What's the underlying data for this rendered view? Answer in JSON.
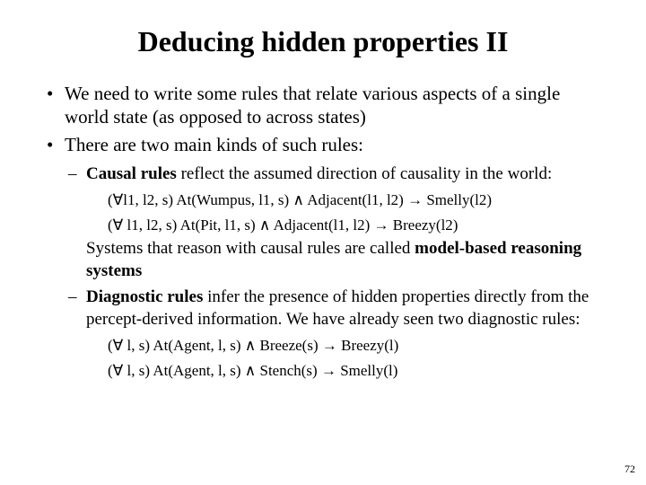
{
  "title": "Deducing hidden properties II",
  "bullets": {
    "b1": "We need to write some rules that relate various aspects of a single world state (as opposed to across states)",
    "b2": "There are two main kinds of such rules:"
  },
  "sub": {
    "causal_bold": "Causal rules",
    "causal_rest": " reflect the assumed direction of causality in the world:",
    "diag_bold": "Diagnostic rules",
    "diag_rest": " infer the presence of hidden properties directly from the percept-derived information. We have already seen two diagnostic rules:"
  },
  "formulas": {
    "f1": "(∀l1, l2, s) At(Wumpus, l1, s) ∧ Adjacent(l1, l2) → Smelly(l2)",
    "f2": "(∀ l1, l2, s) At(Pit, l1, s) ∧ Adjacent(l1, l2) → Breezy(l2)",
    "f3": "(∀ l, s) At(Agent, l, s) ∧ Breeze(s) → Breezy(l)",
    "f4": "(∀ l, s) At(Agent, l, s) ∧ Stench(s) → Smelly(l)"
  },
  "followup": {
    "pre": "Systems that reason with causal rules are called ",
    "bold": "model-based reasoning systems"
  },
  "page": "72"
}
